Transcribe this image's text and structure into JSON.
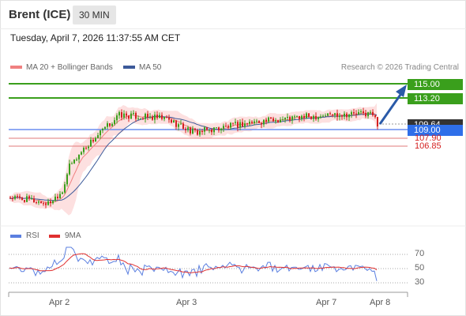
{
  "header": {
    "title": "Brent (ICE)",
    "timeframe": "30 MIN",
    "timestamp": "Tuesday, April 7, 2026 11:37:55 AM CET"
  },
  "legend": {
    "ma20": "MA 20 + Bollinger Bands",
    "ma50": "MA 50",
    "credit": "Research © 2026 Trading Central"
  },
  "rsi_legend": {
    "rsi": "RSI",
    "ma9": "9MA"
  },
  "price_labels": {
    "r2": "115.00",
    "r1": "113.20",
    "pivot": "109.00",
    "last": "109.64",
    "s1": "107.90",
    "s2": "106.85"
  },
  "rsi_axis": {
    "t70": "70",
    "t50": "50",
    "t30": "30"
  },
  "x_axis": {
    "d1": "Apr 2",
    "d2": "Apr 3",
    "d3": "Apr 7",
    "d4": "Apr 8"
  },
  "colors": {
    "resistance": "#3a9f1c",
    "pivot": "#2f6fe9",
    "support": "#e27a7a",
    "bollinger": "#fde0e0",
    "ma20": "#f08080",
    "ma50": "#3c5a9a",
    "rsi": "#5b7fe0",
    "rsi_ma": "#e03030",
    "up": "#3a9f1c",
    "down": "#d42020"
  },
  "chart_data": {
    "type": "candlestick",
    "title": "Brent (ICE)",
    "interval": "30 MIN",
    "levels": [
      {
        "name": "resistance 2",
        "value": 115.0
      },
      {
        "name": "resistance 1",
        "value": 113.2
      },
      {
        "name": "last price",
        "value": 109.64
      },
      {
        "name": "pivot",
        "value": 109.0
      },
      {
        "name": "support 1",
        "value": 107.9
      },
      {
        "name": "support 2",
        "value": 106.85
      }
    ],
    "price_path": {
      "dates": [
        "Apr 2",
        "Apr 2",
        "Apr 2",
        "Apr 2",
        "Apr 2",
        "Apr 3",
        "Apr 3",
        "Apr 3",
        "Apr 3",
        "Apr 7",
        "Apr 7",
        "Apr 7",
        "Apr 8"
      ],
      "values": [
        100.1,
        99.8,
        99.3,
        101.0,
        104.0,
        106.5,
        110.9,
        110.4,
        108.6,
        110.0,
        111.0,
        111.1,
        109.64
      ]
    },
    "indicators": [
      "MA 20 + Bollinger Bands",
      "MA 50",
      "RSI",
      "9MA"
    ],
    "rsi": {
      "ticks": [
        70,
        50,
        30
      ]
    },
    "x_ticks": [
      "Apr 2",
      "Apr 3",
      "Apr 7",
      "Apr 8"
    ],
    "projection": "upward arrow toward 115.00"
  }
}
